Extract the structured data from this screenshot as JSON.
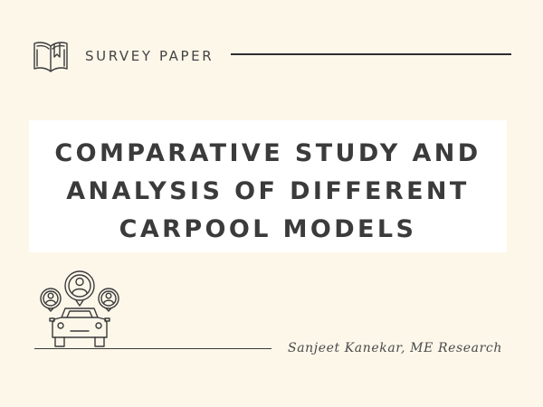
{
  "header": {
    "icon": "open-book-icon",
    "label": "SURVEY PAPER"
  },
  "title": {
    "lines": [
      "COMPARATIVE STUDY AND",
      "ANALYSIS OF DIFFERENT",
      "CARPOOL MODELS"
    ]
  },
  "illustration": {
    "icon": "carpool-car-with-passengers-icon"
  },
  "footer": {
    "byline": "Sanjeet Kanekar, ME Research"
  },
  "colors": {
    "background": "#fdf7ea",
    "panel": "#ffffff",
    "text": "#3b3b3b"
  }
}
